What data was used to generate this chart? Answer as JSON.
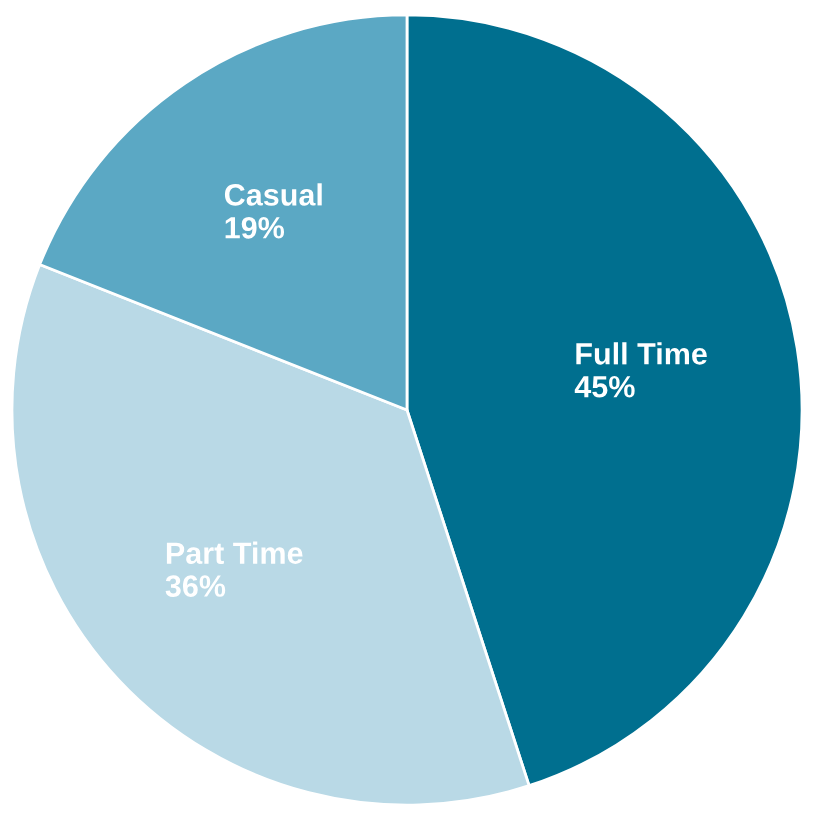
{
  "chart_data": {
    "type": "pie",
    "categories": [
      "Full Time",
      "Part Time",
      "Casual"
    ],
    "values": [
      45,
      36,
      19
    ],
    "colors": [
      "#006f8f",
      "#b9d9e6",
      "#5ba8c4"
    ],
    "value_labels": [
      "45%",
      "36%",
      "19%"
    ]
  }
}
